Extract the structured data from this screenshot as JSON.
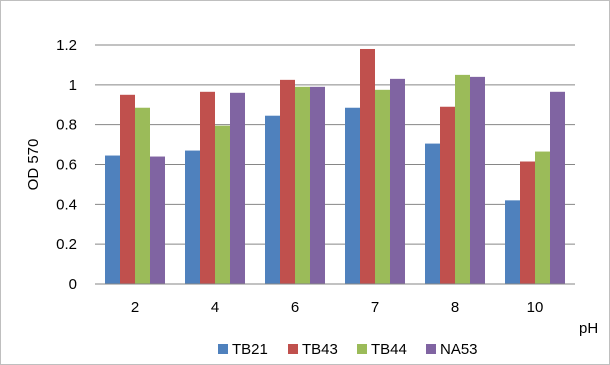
{
  "chart_data": {
    "type": "bar",
    "categories": [
      "2",
      "4",
      "6",
      "7",
      "8",
      "10"
    ],
    "series": [
      {
        "name": "TB21",
        "color": "#4f81bd",
        "values": [
          0.645,
          0.67,
          0.845,
          0.885,
          0.705,
          0.42
        ]
      },
      {
        "name": "TB43",
        "color": "#c0504d",
        "values": [
          0.95,
          0.965,
          1.025,
          1.18,
          0.89,
          0.615
        ]
      },
      {
        "name": "TB44",
        "color": "#9bbb59",
        "values": [
          0.885,
          0.795,
          0.99,
          0.975,
          1.05,
          0.665
        ]
      },
      {
        "name": "NA53",
        "color": "#8064a2",
        "values": [
          0.64,
          0.96,
          0.99,
          1.03,
          1.04,
          0.965
        ]
      }
    ],
    "xlabel": "pH",
    "ylabel": "OD 570",
    "ylim": [
      0,
      1.2
    ],
    "yticks": [
      "0",
      "0.2",
      "0.4",
      "0.6",
      "0.8",
      "1",
      "1.2"
    ],
    "grid": true,
    "legend_position": "bottom"
  }
}
